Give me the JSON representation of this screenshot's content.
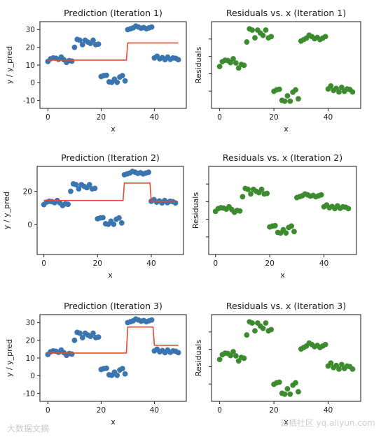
{
  "chart_data": [
    {
      "id": "p1",
      "type": "scatter",
      "title": "Prediction (Iteration 1)",
      "xlabel": "x",
      "ylabel": "y / y_pred",
      "xlim": [
        -3,
        52
      ],
      "ylim": [
        -14.5,
        34.5
      ],
      "xticks": [
        0,
        20,
        40
      ],
      "yticks": [
        -10,
        0,
        10,
        20,
        30
      ],
      "point_color": "#3a75b0",
      "line_color": "#e24a33",
      "points": [
        [
          0,
          12
        ],
        [
          1,
          13.5
        ],
        [
          2,
          14
        ],
        [
          3,
          13.8
        ],
        [
          4,
          13.2
        ],
        [
          5,
          14.5
        ],
        [
          6,
          13
        ],
        [
          7,
          11.5
        ],
        [
          8,
          12.5
        ],
        [
          9,
          12.2
        ],
        [
          10,
          20
        ],
        [
          11,
          24.5
        ],
        [
          12,
          24
        ],
        [
          13,
          21.5
        ],
        [
          14,
          24
        ],
        [
          15,
          23
        ],
        [
          16,
          22.2
        ],
        [
          17,
          24
        ],
        [
          18,
          21.5
        ],
        [
          19,
          21.8
        ],
        [
          20,
          3.5
        ],
        [
          21,
          4
        ],
        [
          22,
          4.2
        ],
        [
          23,
          0.5
        ],
        [
          24,
          0.2
        ],
        [
          25,
          2
        ],
        [
          26,
          0.2
        ],
        [
          27,
          3.2
        ],
        [
          28,
          4
        ],
        [
          29,
          1
        ],
        [
          30,
          30
        ],
        [
          31,
          30.5
        ],
        [
          32,
          31
        ],
        [
          33,
          32
        ],
        [
          34,
          31.5
        ],
        [
          35,
          30.8
        ],
        [
          36,
          31.2
        ],
        [
          37,
          30.5
        ],
        [
          38,
          31
        ],
        [
          39,
          31.5
        ],
        [
          40,
          14
        ],
        [
          41,
          15
        ],
        [
          42,
          13.5
        ],
        [
          43,
          14.2
        ],
        [
          44,
          13
        ],
        [
          45,
          14.5
        ],
        [
          46,
          13.2
        ],
        [
          47,
          14
        ],
        [
          48,
          13.8
        ],
        [
          49,
          13
        ]
      ],
      "line": [
        [
          0,
          12.8
        ],
        [
          29.5,
          12.8
        ],
        [
          30,
          22.5
        ],
        [
          49,
          22.5
        ]
      ]
    },
    {
      "id": "r1",
      "type": "scatter",
      "title": "Residuals vs. x (Iteration 1)",
      "xlabel": "x",
      "ylabel": "Residuals",
      "xlim": [
        -3,
        52
      ],
      "ylim": [
        -15,
        14
      ],
      "xticks": [
        0,
        20,
        40
      ],
      "yticks": [],
      "point_color": "#3d8b2f",
      "points": [
        [
          0,
          -1
        ],
        [
          1,
          0.6
        ],
        [
          2,
          1.1
        ],
        [
          3,
          1
        ],
        [
          4,
          0.3
        ],
        [
          5,
          1.6
        ],
        [
          6,
          0.2
        ],
        [
          7,
          -1.5
        ],
        [
          8,
          -0.3
        ],
        [
          9,
          -0.6
        ],
        [
          10,
          7.2
        ],
        [
          11,
          11.6
        ],
        [
          12,
          11.2
        ],
        [
          13,
          8.6
        ],
        [
          14,
          11.2
        ],
        [
          15,
          10.2
        ],
        [
          16,
          9.4
        ],
        [
          17,
          11.2
        ],
        [
          18,
          8.6
        ],
        [
          19,
          9
        ],
        [
          20,
          -9.3
        ],
        [
          21,
          -8.8
        ],
        [
          22,
          -8.6
        ],
        [
          23,
          -12.3
        ],
        [
          24,
          -12.6
        ],
        [
          25,
          -10.8
        ],
        [
          26,
          -12.6
        ],
        [
          27,
          -9.6
        ],
        [
          28,
          -8.8
        ],
        [
          29,
          -11.8
        ],
        [
          30,
          7.5
        ],
        [
          31,
          8
        ],
        [
          32,
          8.5
        ],
        [
          33,
          9.5
        ],
        [
          34,
          9
        ],
        [
          35,
          8.3
        ],
        [
          36,
          8.7
        ],
        [
          37,
          8
        ],
        [
          38,
          8.5
        ],
        [
          39,
          9
        ],
        [
          40,
          -8.5
        ],
        [
          41,
          -7.5
        ],
        [
          42,
          -9
        ],
        [
          43,
          -8.3
        ],
        [
          44,
          -9.5
        ],
        [
          45,
          -8
        ],
        [
          46,
          -9.3
        ],
        [
          47,
          -8.5
        ],
        [
          48,
          -8.7
        ],
        [
          49,
          -9.5
        ]
      ]
    },
    {
      "id": "p2",
      "type": "scatter",
      "title": "Prediction (Iteration 2)",
      "xlabel": "x",
      "ylabel": "y / y_pred",
      "xlim": [
        -2.5,
        52
      ],
      "ylim": [
        -18,
        35
      ],
      "xticks": [
        0,
        20,
        40
      ],
      "yticks": [
        0,
        20
      ],
      "point_color": "#3a75b0",
      "line_color": "#e24a33",
      "points": [
        [
          0,
          12
        ],
        [
          1,
          13.5
        ],
        [
          2,
          14
        ],
        [
          3,
          13.8
        ],
        [
          4,
          13.2
        ],
        [
          5,
          14.5
        ],
        [
          6,
          13
        ],
        [
          7,
          11.5
        ],
        [
          8,
          12.5
        ],
        [
          9,
          12.2
        ],
        [
          10,
          20
        ],
        [
          11,
          24.5
        ],
        [
          12,
          24
        ],
        [
          13,
          21.5
        ],
        [
          14,
          24
        ],
        [
          15,
          23
        ],
        [
          16,
          22.2
        ],
        [
          17,
          24
        ],
        [
          18,
          21.5
        ],
        [
          19,
          21.8
        ],
        [
          20,
          3.5
        ],
        [
          21,
          4
        ],
        [
          22,
          4.2
        ],
        [
          23,
          0.5
        ],
        [
          24,
          0.2
        ],
        [
          25,
          2
        ],
        [
          26,
          0.2
        ],
        [
          27,
          3.2
        ],
        [
          28,
          4
        ],
        [
          29,
          1
        ],
        [
          30,
          30
        ],
        [
          31,
          30.5
        ],
        [
          32,
          31
        ],
        [
          33,
          32
        ],
        [
          34,
          31.5
        ],
        [
          35,
          30.8
        ],
        [
          36,
          31.2
        ],
        [
          37,
          30.5
        ],
        [
          38,
          31
        ],
        [
          39,
          31.5
        ],
        [
          40,
          14
        ],
        [
          41,
          15
        ],
        [
          42,
          13.5
        ],
        [
          43,
          14.2
        ],
        [
          44,
          13
        ],
        [
          45,
          14.5
        ],
        [
          46,
          13.2
        ],
        [
          47,
          14
        ],
        [
          48,
          13.8
        ],
        [
          49,
          13
        ]
      ],
      "line": [
        [
          0,
          14.5
        ],
        [
          29.5,
          14.5
        ],
        [
          30,
          25
        ],
        [
          39.5,
          25
        ],
        [
          40,
          14
        ],
        [
          49,
          14
        ]
      ]
    },
    {
      "id": "r2",
      "type": "scatter",
      "title": "Residuals vs. x (Iteration 2)",
      "xlabel": "x",
      "ylabel": "Residuals",
      "xlim": [
        -2.5,
        52
      ],
      "ylim": [
        -26,
        22
      ],
      "xticks": [
        0,
        20,
        40
      ],
      "yticks": [],
      "point_color": "#3d8b2f",
      "points": [
        [
          0,
          -2.5
        ],
        [
          1,
          -1
        ],
        [
          2,
          -0.5
        ],
        [
          3,
          -0.7
        ],
        [
          4,
          -1.3
        ],
        [
          5,
          0
        ],
        [
          6,
          -1.5
        ],
        [
          7,
          -3
        ],
        [
          8,
          -2
        ],
        [
          9,
          -2.3
        ],
        [
          10,
          5.5
        ],
        [
          11,
          10
        ],
        [
          12,
          9.5
        ],
        [
          13,
          7
        ],
        [
          14,
          9.5
        ],
        [
          15,
          8.5
        ],
        [
          16,
          7.7
        ],
        [
          17,
          9.5
        ],
        [
          18,
          7
        ],
        [
          19,
          7.3
        ],
        [
          20,
          -11
        ],
        [
          21,
          -10.5
        ],
        [
          22,
          -10.3
        ],
        [
          23,
          -14
        ],
        [
          24,
          -14.3
        ],
        [
          25,
          -12.5
        ],
        [
          26,
          -14.3
        ],
        [
          27,
          -11.3
        ],
        [
          28,
          -10.5
        ],
        [
          29,
          -13.5
        ],
        [
          30,
          5
        ],
        [
          31,
          5.5
        ],
        [
          32,
          6
        ],
        [
          33,
          7
        ],
        [
          34,
          6.5
        ],
        [
          35,
          5.8
        ],
        [
          36,
          6.2
        ],
        [
          37,
          5.5
        ],
        [
          38,
          6
        ],
        [
          39,
          6.5
        ],
        [
          40,
          0
        ],
        [
          41,
          1
        ],
        [
          42,
          -0.5
        ],
        [
          43,
          0.2
        ],
        [
          44,
          -1
        ],
        [
          45,
          0.5
        ],
        [
          46,
          -0.8
        ],
        [
          47,
          0
        ],
        [
          48,
          -0.2
        ],
        [
          49,
          -1
        ]
      ]
    },
    {
      "id": "p3",
      "type": "scatter",
      "title": "Prediction (Iteration 3)",
      "xlabel": "x",
      "ylabel": "y / y_pred",
      "xlim": [
        -3,
        52
      ],
      "ylim": [
        -14.5,
        34.5
      ],
      "xticks": [
        0,
        20,
        40
      ],
      "yticks": [
        -10,
        0,
        10,
        20,
        30
      ],
      "point_color": "#3a75b0",
      "line_color": "#e24a33",
      "points": [
        [
          0,
          12
        ],
        [
          1,
          13.5
        ],
        [
          2,
          14
        ],
        [
          3,
          13.8
        ],
        [
          4,
          13.2
        ],
        [
          5,
          14.5
        ],
        [
          6,
          13
        ],
        [
          7,
          11.5
        ],
        [
          8,
          12.5
        ],
        [
          9,
          12.2
        ],
        [
          10,
          20
        ],
        [
          11,
          24.5
        ],
        [
          12,
          24
        ],
        [
          13,
          21.5
        ],
        [
          14,
          24
        ],
        [
          15,
          23
        ],
        [
          16,
          22.2
        ],
        [
          17,
          24
        ],
        [
          18,
          21.5
        ],
        [
          19,
          21.8
        ],
        [
          20,
          3.5
        ],
        [
          21,
          4
        ],
        [
          22,
          4.2
        ],
        [
          23,
          0.5
        ],
        [
          24,
          0.2
        ],
        [
          25,
          2
        ],
        [
          26,
          0.2
        ],
        [
          27,
          3.2
        ],
        [
          28,
          4
        ],
        [
          29,
          1
        ],
        [
          30,
          30
        ],
        [
          31,
          30.5
        ],
        [
          32,
          31
        ],
        [
          33,
          32
        ],
        [
          34,
          31.5
        ],
        [
          35,
          30.8
        ],
        [
          36,
          31.2
        ],
        [
          37,
          30.5
        ],
        [
          38,
          31
        ],
        [
          39,
          31.5
        ],
        [
          40,
          14
        ],
        [
          41,
          15
        ],
        [
          42,
          13.5
        ],
        [
          43,
          14.2
        ],
        [
          44,
          13
        ],
        [
          45,
          14.5
        ],
        [
          46,
          13.2
        ],
        [
          47,
          14
        ],
        [
          48,
          13.8
        ],
        [
          49,
          13
        ]
      ],
      "line": [
        [
          0,
          12.8
        ],
        [
          29.5,
          12.8
        ],
        [
          30,
          27.5
        ],
        [
          39.5,
          27.5
        ],
        [
          40,
          17.2
        ],
        [
          49,
          17.2
        ]
      ]
    },
    {
      "id": "r3",
      "type": "scatter",
      "title": "Residuals vs. x (Iteration 3)",
      "xlabel": "x",
      "ylabel": "Residuals",
      "xlim": [
        -3,
        52
      ],
      "ylim": [
        -15,
        14
      ],
      "xticks": [
        0,
        20,
        40
      ],
      "yticks": [],
      "point_color": "#3d8b2f",
      "points": [
        [
          0,
          -1
        ],
        [
          1,
          0.6
        ],
        [
          2,
          1.1
        ],
        [
          3,
          1
        ],
        [
          4,
          0.3
        ],
        [
          5,
          1.6
        ],
        [
          6,
          0.2
        ],
        [
          7,
          -1.5
        ],
        [
          8,
          -0.3
        ],
        [
          9,
          -0.6
        ],
        [
          10,
          7.2
        ],
        [
          11,
          11.6
        ],
        [
          12,
          11.2
        ],
        [
          13,
          8.6
        ],
        [
          14,
          11.2
        ],
        [
          15,
          10.2
        ],
        [
          16,
          9.4
        ],
        [
          17,
          11.2
        ],
        [
          18,
          8.6
        ],
        [
          19,
          9
        ],
        [
          20,
          -9.3
        ],
        [
          21,
          -8.8
        ],
        [
          22,
          -8.6
        ],
        [
          23,
          -12.3
        ],
        [
          24,
          -12.6
        ],
        [
          25,
          -10.8
        ],
        [
          26,
          -12.6
        ],
        [
          27,
          -9.6
        ],
        [
          28,
          -8.8
        ],
        [
          29,
          -11.8
        ],
        [
          30,
          2.5
        ],
        [
          31,
          3
        ],
        [
          32,
          3.5
        ],
        [
          33,
          4.5
        ],
        [
          34,
          4
        ],
        [
          35,
          3.3
        ],
        [
          36,
          3.7
        ],
        [
          37,
          3
        ],
        [
          38,
          3.5
        ],
        [
          39,
          4
        ],
        [
          40,
          -3.2
        ],
        [
          41,
          -2.2
        ],
        [
          42,
          -3.7
        ],
        [
          43,
          -3
        ],
        [
          44,
          -4.2
        ],
        [
          45,
          -2.7
        ],
        [
          46,
          -4
        ],
        [
          47,
          -3.2
        ],
        [
          48,
          -3.4
        ],
        [
          49,
          -4.2
        ]
      ]
    }
  ],
  "watermark": {
    "left_text": "大数据文摘",
    "right_text": "云栖社区 yq.aliyun.com"
  }
}
